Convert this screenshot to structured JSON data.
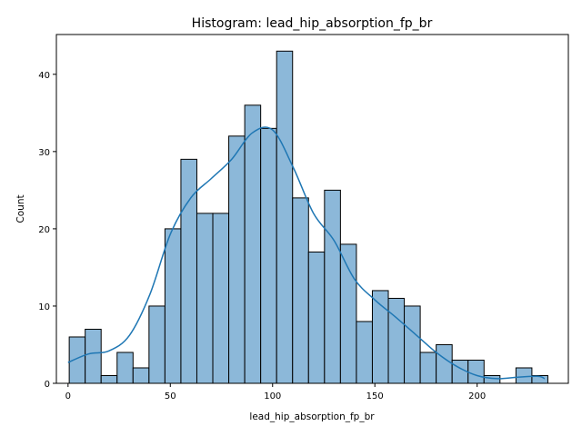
{
  "chart_data": {
    "type": "bar",
    "title": "Histogram: lead_hip_absorption_fp_br",
    "xlabel": "lead_hip_absorption_fp_br",
    "ylabel": "Count",
    "bin_start": 0.58,
    "bin_width": 7.8,
    "counts": [
      6,
      7,
      1,
      4,
      2,
      10,
      20,
      29,
      22,
      22,
      32,
      36,
      33,
      43,
      24,
      17,
      25,
      18,
      8,
      12,
      11,
      10,
      4,
      5,
      3,
      3,
      1,
      0,
      2,
      1
    ],
    "kde": {
      "x": [
        0,
        10,
        20,
        30,
        40,
        50,
        60,
        70,
        80,
        90,
        100,
        110,
        120,
        130,
        140,
        150,
        160,
        170,
        180,
        190,
        200,
        210,
        220,
        230,
        233
      ],
      "y": [
        2.7,
        3.8,
        4.2,
        6.2,
        11.5,
        19.3,
        24.0,
        26.5,
        29.0,
        32.4,
        32.8,
        28.0,
        22.0,
        18.5,
        13.5,
        10.8,
        8.6,
        6.3,
        4.0,
        2.2,
        1.0,
        0.6,
        0.8,
        0.9,
        0.6
      ]
    },
    "xlim": [
      -5.7,
      244.6
    ],
    "ylim": [
      0,
      45.15
    ],
    "xticks": [
      0,
      50,
      100,
      150,
      200
    ],
    "yticks": [
      0,
      10,
      20,
      30,
      40
    ],
    "bar_fill": "#8cb8d9",
    "bar_edge": "#000000",
    "kde_color": "#1f77b4",
    "grid": false,
    "legend": "none"
  }
}
